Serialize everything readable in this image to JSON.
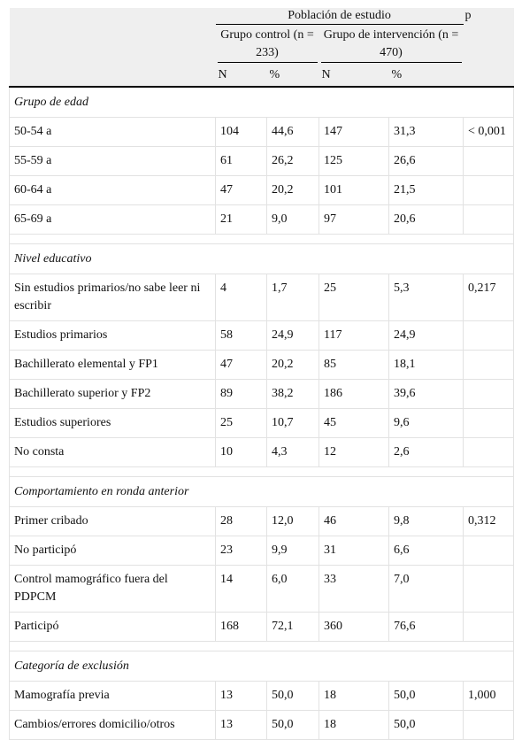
{
  "header": {
    "population": "Población de estudio",
    "p": "p",
    "control": "Grupo control (n = 233)",
    "intervention": "Grupo de intervención (n = 470)",
    "n": "N",
    "pct": "%"
  },
  "sections": [
    {
      "title": "Grupo de edad",
      "rows": [
        {
          "label": "50-54 a",
          "c_n": "104",
          "c_pct": "44,6",
          "i_n": "147",
          "i_pct": "31,3",
          "p": "< 0,001"
        },
        {
          "label": "55-59 a",
          "c_n": "61",
          "c_pct": "26,2",
          "i_n": "125",
          "i_pct": "26,6",
          "p": ""
        },
        {
          "label": "60-64 a",
          "c_n": "47",
          "c_pct": "20,2",
          "i_n": "101",
          "i_pct": "21,5",
          "p": ""
        },
        {
          "label": "65-69 a",
          "c_n": "21",
          "c_pct": "9,0",
          "i_n": "97",
          "i_pct": "20,6",
          "p": ""
        }
      ]
    },
    {
      "title": "Nivel educativo",
      "rows": [
        {
          "label": "Sin estudios primarios/no sabe leer ni escribir",
          "c_n": "4",
          "c_pct": "1,7",
          "i_n": "25",
          "i_pct": "5,3",
          "p": "0,217"
        },
        {
          "label": "Estudios primarios",
          "c_n": "58",
          "c_pct": "24,9",
          "i_n": "117",
          "i_pct": "24,9",
          "p": ""
        },
        {
          "label": "Bachillerato elemental y FP1",
          "c_n": "47",
          "c_pct": "20,2",
          "i_n": "85",
          "i_pct": "18,1",
          "p": ""
        },
        {
          "label": "Bachillerato superior y FP2",
          "c_n": "89",
          "c_pct": "38,2",
          "i_n": "186",
          "i_pct": "39,6",
          "p": ""
        },
        {
          "label": "Estudios superiores",
          "c_n": "25",
          "c_pct": "10,7",
          "i_n": "45",
          "i_pct": "9,6",
          "p": ""
        },
        {
          "label": "No consta",
          "c_n": "10",
          "c_pct": "4,3",
          "i_n": "12",
          "i_pct": "2,6",
          "p": ""
        }
      ]
    },
    {
      "title": "Comportamiento en ronda anterior",
      "rows": [
        {
          "label": "Primer cribado",
          "c_n": "28",
          "c_pct": "12,0",
          "i_n": "46",
          "i_pct": "9,8",
          "p": "0,312"
        },
        {
          "label": "No participó",
          "c_n": "23",
          "c_pct": "9,9",
          "i_n": "31",
          "i_pct": "6,6",
          "p": ""
        },
        {
          "label": "Control mamográfico fuera del PDPCM",
          "c_n": "14",
          "c_pct": "6,0",
          "i_n": "33",
          "i_pct": "7,0",
          "p": ""
        },
        {
          "label": "Participó",
          "c_n": "168",
          "c_pct": "72,1",
          "i_n": "360",
          "i_pct": "76,6",
          "p": ""
        }
      ]
    },
    {
      "title": "Categoría de exclusión",
      "rows": [
        {
          "label": "Mamografía previa",
          "c_n": "13",
          "c_pct": "50,0",
          "i_n": "18",
          "i_pct": "50,0",
          "p": "1,000"
        },
        {
          "label": "Cambios/errores domicilio/otros",
          "c_n": "13",
          "c_pct": "50,0",
          "i_n": "18",
          "i_pct": "50,0",
          "p": ""
        }
      ]
    }
  ]
}
